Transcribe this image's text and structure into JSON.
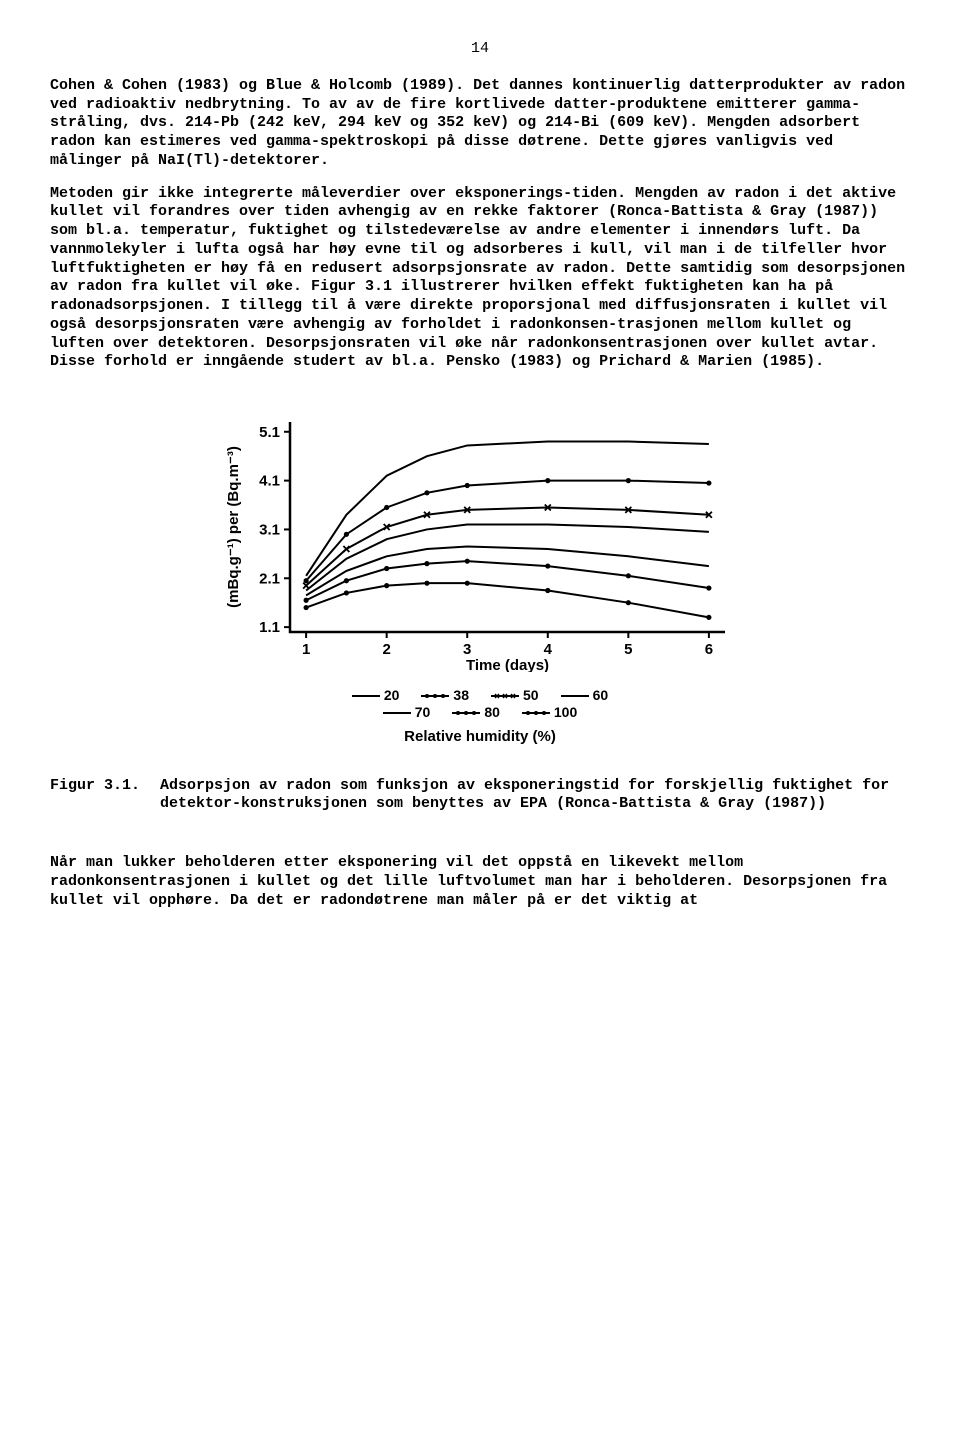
{
  "page_number": "14",
  "para1": "Cohen & Cohen (1983) og Blue & Holcomb (1989). Det dannes kontinuerlig datterprodukter av radon ved radioaktiv nedbrytning. To av av de fire kortlivede datter-produktene emitterer gamma-stråling, dvs. 214-Pb (242 keV, 294 keV og 352 keV) og 214-Bi (609 keV). Mengden adsorbert radon kan estimeres ved gamma-spektroskopi på disse døtrene. Dette gjøres vanligvis ved målinger på NaI(Tl)-detektorer.",
  "para2": "Metoden gir ikke integrerte måleverdier over eksponerings-tiden. Mengden av radon i det aktive kullet vil forandres over tiden avhengig av en rekke faktorer (Ronca-Battista & Gray (1987)) som bl.a. temperatur, fuktighet og tilstedeværelse av andre elementer i innendørs luft. Da vannmolekyler i lufta også har høy evne til og adsorberes i kull, vil man i de tilfeller hvor luftfuktigheten er høy få en redusert adsorpsjonsrate av radon. Dette samtidig som desorpsjonen av radon fra kullet vil øke. Figur 3.1 illustrerer hvilken effekt fuktigheten kan ha på radonadsorpsjonen. I tillegg til å være direkte proporsjonal med diffusjonsraten i kullet vil også desorpsjonsraten være avhengig av forholdet i radonkonsen-trasjonen mellom kullet og luften over detektoren. Desorpsjonsraten vil øke når radonkonsentrasjonen over kullet avtar. Disse forhold er inngående studert av bl.a. Pensko (1983) og Prichard & Marien (1985).",
  "chart": {
    "type": "line",
    "x_ticks": [
      1,
      2,
      3,
      4,
      5,
      6
    ],
    "y_ticks": [
      1.1,
      2.1,
      3.1,
      4.1,
      5.1
    ],
    "xlim": [
      0.8,
      6.2
    ],
    "ylim": [
      1.0,
      5.3
    ],
    "x_label": "Time (days)",
    "y_label": "(mBq.g⁻¹) per (Bq.m⁻³)",
    "axis_color": "#000000",
    "line_color": "#000000",
    "line_width": 2,
    "label_fontsize": 15,
    "tick_fontsize": 15,
    "series": {
      "20": [
        [
          1,
          2.15
        ],
        [
          1.5,
          3.4
        ],
        [
          2,
          4.2
        ],
        [
          2.5,
          4.6
        ],
        [
          3,
          4.82
        ],
        [
          4,
          4.9
        ],
        [
          5,
          4.9
        ],
        [
          6,
          4.85
        ]
      ],
      "38": [
        [
          1,
          2.05
        ],
        [
          1.5,
          3.0
        ],
        [
          2,
          3.55
        ],
        [
          2.5,
          3.85
        ],
        [
          3,
          4.0
        ],
        [
          4,
          4.1
        ],
        [
          5,
          4.1
        ],
        [
          6,
          4.05
        ]
      ],
      "50": [
        [
          1,
          1.95
        ],
        [
          1.5,
          2.7
        ],
        [
          2,
          3.15
        ],
        [
          2.5,
          3.4
        ],
        [
          3,
          3.5
        ],
        [
          4,
          3.55
        ],
        [
          5,
          3.5
        ],
        [
          6,
          3.4
        ]
      ],
      "60": [
        [
          1,
          1.85
        ],
        [
          1.5,
          2.5
        ],
        [
          2,
          2.9
        ],
        [
          2.5,
          3.1
        ],
        [
          3,
          3.2
        ],
        [
          4,
          3.2
        ],
        [
          5,
          3.15
        ],
        [
          6,
          3.05
        ]
      ],
      "70": [
        [
          1,
          1.75
        ],
        [
          1.5,
          2.25
        ],
        [
          2,
          2.55
        ],
        [
          2.5,
          2.7
        ],
        [
          3,
          2.75
        ],
        [
          4,
          2.7
        ],
        [
          5,
          2.55
        ],
        [
          6,
          2.35
        ]
      ],
      "80": [
        [
          1,
          1.65
        ],
        [
          1.5,
          2.05
        ],
        [
          2,
          2.3
        ],
        [
          2.5,
          2.4
        ],
        [
          3,
          2.45
        ],
        [
          4,
          2.35
        ],
        [
          5,
          2.15
        ],
        [
          6,
          1.9
        ]
      ],
      "100": [
        [
          1,
          1.5
        ],
        [
          1.5,
          1.8
        ],
        [
          2,
          1.95
        ],
        [
          2.5,
          2.0
        ],
        [
          3,
          2.0
        ],
        [
          4,
          1.85
        ],
        [
          5,
          1.6
        ],
        [
          6,
          1.3
        ]
      ]
    },
    "markers": {
      "20": "none",
      "38": "dot",
      "50": "x",
      "60": "none",
      "70": "none",
      "80": "dot",
      "100": "dot"
    }
  },
  "legend": {
    "row1": [
      "20",
      "38",
      "50",
      "60"
    ],
    "row2": [
      "70",
      "80",
      "100"
    ],
    "title": "Relative humidity (%)"
  },
  "figure": {
    "label": "Figur 3.1.",
    "caption": "Adsorpsjon av radon som funksjon av eksponeringstid for forskjellig fuktighet for detektor-konstruksjonen som benyttes av EPA (Ronca-Battista & Gray (1987))"
  },
  "para3": "Når man lukker beholderen etter eksponering vil det oppstå en likevekt mellom radonkonsentrasjonen i kullet og det lille luftvolumet man har i beholderen. Desorpsjonen fra kullet vil opphøre. Da det er radondøtrene man måler på er det viktig at"
}
